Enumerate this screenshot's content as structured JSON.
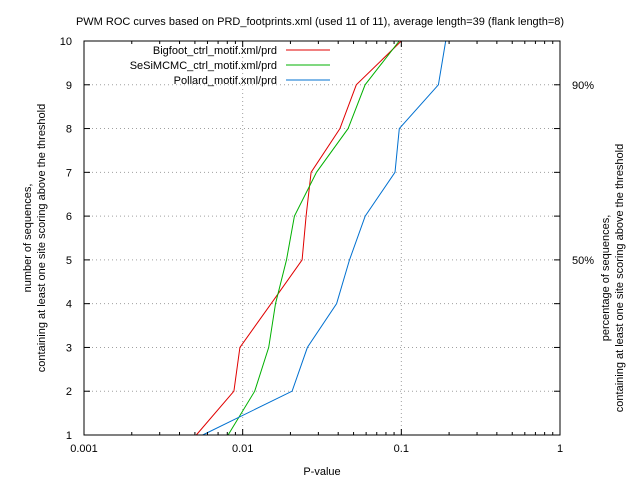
{
  "chart_data": {
    "type": "line",
    "title": "PWM ROC curves based on PRD_footprints.xml (used 11 of 11), average length=39 (flank length=8)",
    "xlabel": "P-value",
    "ylabel": [
      "number of sequences,",
      "containing at least one site scoring above the threshold"
    ],
    "y2label": [
      "percentage of sequences,",
      "containing at least one site scoring above the threshold"
    ],
    "xscale": "log",
    "xlim": [
      0.001,
      1
    ],
    "ylim": [
      1,
      10
    ],
    "x_ticks": [
      {
        "value": 0.001,
        "label": "0.001"
      },
      {
        "value": 0.01,
        "label": "0.01"
      },
      {
        "value": 0.1,
        "label": "0.1"
      },
      {
        "value": 1,
        "label": "1"
      }
    ],
    "y_ticks": [
      {
        "value": 1,
        "label": "1"
      },
      {
        "value": 2,
        "label": "2"
      },
      {
        "value": 3,
        "label": "3"
      },
      {
        "value": 4,
        "label": "4"
      },
      {
        "value": 5,
        "label": "5"
      },
      {
        "value": 6,
        "label": "6"
      },
      {
        "value": 7,
        "label": "7"
      },
      {
        "value": 8,
        "label": "8"
      },
      {
        "value": 9,
        "label": "9"
      },
      {
        "value": 10,
        "label": "10"
      }
    ],
    "y2_ticks": [
      {
        "value": 5,
        "label": "50%"
      },
      {
        "value": 9,
        "label": "90%"
      }
    ],
    "grid": true,
    "legend_position": "top-right",
    "series": [
      {
        "name": "Bigfoot_ctrl_motif.xml/prd",
        "color": "#e00000",
        "points": [
          [
            0.0051,
            1
          ],
          [
            0.0088,
            2
          ],
          [
            0.0096,
            3
          ],
          [
            0.0151,
            4
          ],
          [
            0.0237,
            5
          ],
          [
            0.0251,
            6
          ],
          [
            0.027,
            7
          ],
          [
            0.041,
            8
          ],
          [
            0.052,
            9
          ],
          [
            0.1,
            10
          ]
        ]
      },
      {
        "name": "SeSiMCMC_ctrl_motif.xml/prd",
        "color": "#00b000",
        "points": [
          [
            0.0081,
            1
          ],
          [
            0.0119,
            2
          ],
          [
            0.0146,
            3
          ],
          [
            0.0161,
            4
          ],
          [
            0.0189,
            5
          ],
          [
            0.0212,
            6
          ],
          [
            0.0292,
            7
          ],
          [
            0.0462,
            8
          ],
          [
            0.0591,
            9
          ],
          [
            0.097,
            10
          ]
        ]
      },
      {
        "name": "Pollard_motif.xml/prd",
        "color": "#0070d0",
        "points": [
          [
            0.0056,
            1
          ],
          [
            0.0205,
            2
          ],
          [
            0.0256,
            3
          ],
          [
            0.0391,
            4
          ],
          [
            0.0471,
            5
          ],
          [
            0.0592,
            6
          ],
          [
            0.0912,
            7
          ],
          [
            0.0971,
            8
          ],
          [
            0.1712,
            9
          ],
          [
            0.1905,
            10
          ]
        ]
      }
    ]
  }
}
